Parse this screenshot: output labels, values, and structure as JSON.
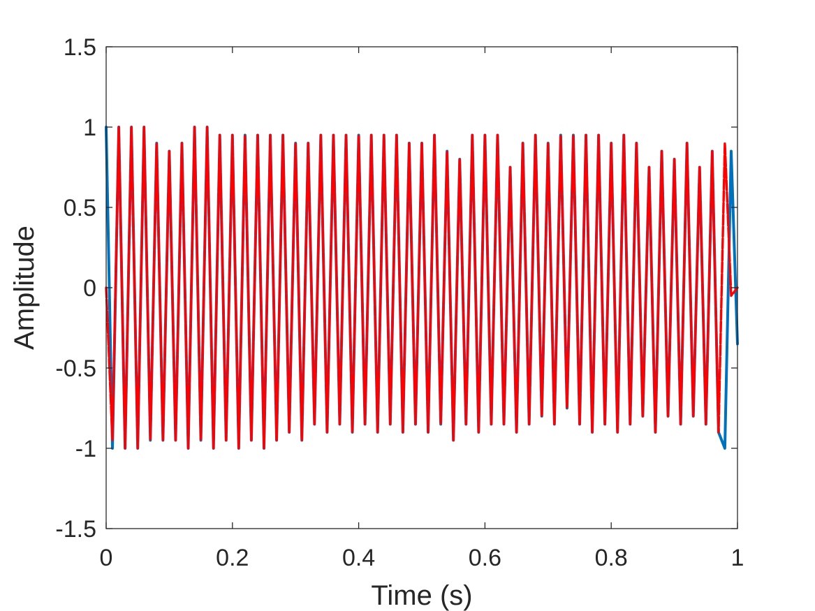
{
  "chart_data": {
    "type": "line",
    "title": "",
    "xlabel": "Time (s)",
    "ylabel": "Amplitude",
    "xlim": [
      0,
      1
    ],
    "ylim": [
      -1.5,
      1.5
    ],
    "x_ticks": [
      "0",
      "0.2",
      "0.4",
      "0.6",
      "0.8",
      "1"
    ],
    "y_ticks": [
      "-1.5",
      "-1",
      "-0.5",
      "0",
      "0.5",
      "1",
      "1.5"
    ],
    "grid": false,
    "legend": "none",
    "series": [
      {
        "color": "#0072BD",
        "style": "solid",
        "description_note": "",
        "x": [
          0.0,
          0.01,
          0.02,
          0.03,
          0.04,
          0.05,
          0.06,
          0.07,
          0.08,
          0.09,
          0.1,
          0.11,
          0.12,
          0.13,
          0.14,
          0.15,
          0.16,
          0.17,
          0.18,
          0.19,
          0.2,
          0.21,
          0.22,
          0.23,
          0.24,
          0.25,
          0.26,
          0.27,
          0.28,
          0.29,
          0.3,
          0.31,
          0.32,
          0.33,
          0.34,
          0.35,
          0.36,
          0.37,
          0.38,
          0.39,
          0.4,
          0.41,
          0.42,
          0.43,
          0.44,
          0.45,
          0.46,
          0.47,
          0.48,
          0.49,
          0.5,
          0.51,
          0.52,
          0.53,
          0.54,
          0.55,
          0.56,
          0.57,
          0.58,
          0.59,
          0.6,
          0.61,
          0.62,
          0.63,
          0.64,
          0.65,
          0.66,
          0.67,
          0.68,
          0.69,
          0.7,
          0.71,
          0.72,
          0.73,
          0.74,
          0.75,
          0.76,
          0.77,
          0.78,
          0.79,
          0.8,
          0.81,
          0.82,
          0.83,
          0.84,
          0.85,
          0.86,
          0.87,
          0.88,
          0.89,
          0.9,
          0.91,
          0.92,
          0.93,
          0.94,
          0.95,
          0.96,
          0.97,
          0.98,
          0.99,
          1.0
        ],
        "y": [
          1.0,
          -1.0,
          1.0,
          -1.0,
          1.0,
          -1.0,
          1.0,
          -0.95,
          0.9,
          -0.95,
          0.85,
          -0.95,
          0.9,
          -1.0,
          1.0,
          -0.95,
          1.0,
          -1.0,
          0.95,
          -0.95,
          0.95,
          -1.0,
          0.95,
          -0.95,
          0.95,
          -1.0,
          0.95,
          -0.95,
          0.95,
          -0.9,
          0.9,
          -0.95,
          0.9,
          -0.85,
          0.95,
          -0.9,
          0.95,
          -0.85,
          0.95,
          -0.9,
          0.95,
          -0.85,
          0.95,
          -0.9,
          0.95,
          -0.85,
          0.95,
          -0.9,
          0.9,
          -0.85,
          0.9,
          -0.9,
          0.95,
          -0.85,
          0.85,
          -0.95,
          0.8,
          -0.85,
          0.95,
          -0.9,
          0.95,
          -0.85,
          0.95,
          -0.85,
          0.75,
          -0.9,
          0.9,
          -0.85,
          0.95,
          -0.8,
          0.9,
          -0.85,
          0.95,
          -0.75,
          0.95,
          -0.85,
          0.95,
          -0.9,
          0.95,
          -0.85,
          0.9,
          -0.9,
          0.95,
          -0.85,
          0.9,
          -0.8,
          0.75,
          -0.9,
          0.85,
          -0.8,
          0.8,
          -0.85,
          0.9,
          -0.8,
          0.75,
          -0.85,
          0.85,
          -0.9,
          -1.0,
          0.85,
          -0.35
        ]
      },
      {
        "color": "#FF0000",
        "style": "dashed",
        "x": [
          0.0,
          0.01,
          0.02,
          0.03,
          0.04,
          0.05,
          0.06,
          0.07,
          0.08,
          0.09,
          0.1,
          0.11,
          0.12,
          0.13,
          0.14,
          0.15,
          0.16,
          0.17,
          0.18,
          0.19,
          0.2,
          0.21,
          0.22,
          0.23,
          0.24,
          0.25,
          0.26,
          0.27,
          0.28,
          0.29,
          0.3,
          0.31,
          0.32,
          0.33,
          0.34,
          0.35,
          0.36,
          0.37,
          0.38,
          0.39,
          0.4,
          0.41,
          0.42,
          0.43,
          0.44,
          0.45,
          0.46,
          0.47,
          0.48,
          0.49,
          0.5,
          0.51,
          0.52,
          0.53,
          0.54,
          0.55,
          0.56,
          0.57,
          0.58,
          0.59,
          0.6,
          0.61,
          0.62,
          0.63,
          0.64,
          0.65,
          0.66,
          0.67,
          0.68,
          0.69,
          0.7,
          0.71,
          0.72,
          0.73,
          0.74,
          0.75,
          0.76,
          0.77,
          0.78,
          0.79,
          0.8,
          0.81,
          0.82,
          0.83,
          0.84,
          0.85,
          0.86,
          0.87,
          0.88,
          0.89,
          0.9,
          0.91,
          0.92,
          0.93,
          0.94,
          0.95,
          0.96,
          0.97,
          0.98,
          0.99,
          1.0
        ],
        "y": [
          0.0,
          -0.95,
          1.0,
          -1.0,
          1.0,
          -1.0,
          1.0,
          -0.95,
          0.9,
          -0.95,
          0.85,
          -0.95,
          0.9,
          -1.0,
          1.0,
          -0.95,
          1.0,
          -1.0,
          0.95,
          -0.95,
          0.95,
          -1.0,
          0.95,
          -0.95,
          0.95,
          -1.0,
          0.95,
          -0.95,
          0.95,
          -0.9,
          0.9,
          -0.95,
          0.9,
          -0.85,
          0.95,
          -0.9,
          0.95,
          -0.85,
          0.95,
          -0.9,
          0.95,
          -0.85,
          0.95,
          -0.9,
          0.95,
          -0.85,
          0.95,
          -0.9,
          0.9,
          -0.85,
          0.9,
          -0.9,
          0.95,
          -0.85,
          0.85,
          -0.95,
          0.8,
          -0.85,
          0.95,
          -0.9,
          0.95,
          -0.85,
          0.95,
          -0.85,
          0.75,
          -0.9,
          0.9,
          -0.85,
          0.95,
          -0.8,
          0.9,
          -0.85,
          0.95,
          -0.75,
          0.95,
          -0.85,
          0.95,
          -0.9,
          0.95,
          -0.85,
          0.9,
          -0.9,
          0.95,
          -0.85,
          0.9,
          -0.8,
          0.75,
          -0.9,
          0.85,
          -0.8,
          0.8,
          -0.85,
          0.9,
          -0.8,
          0.75,
          -0.85,
          0.85,
          -0.9,
          0.9,
          -0.05,
          0.0
        ]
      }
    ]
  }
}
